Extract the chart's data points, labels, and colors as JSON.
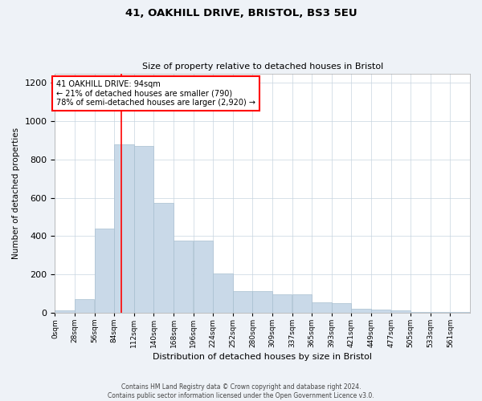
{
  "title1": "41, OAKHILL DRIVE, BRISTOL, BS3 5EU",
  "title2": "Size of property relative to detached houses in Bristol",
  "xlabel": "Distribution of detached houses by size in Bristol",
  "ylabel": "Number of detached properties",
  "bar_labels": [
    "0sqm",
    "28sqm",
    "56sqm",
    "84sqm",
    "112sqm",
    "140sqm",
    "168sqm",
    "196sqm",
    "224sqm",
    "252sqm",
    "280sqm",
    "309sqm",
    "337sqm",
    "365sqm",
    "393sqm",
    "421sqm",
    "449sqm",
    "477sqm",
    "505sqm",
    "533sqm",
    "561sqm"
  ],
  "bar_values": [
    10,
    70,
    440,
    880,
    870,
    575,
    375,
    375,
    205,
    110,
    110,
    95,
    95,
    55,
    50,
    20,
    15,
    10,
    5,
    2,
    2
  ],
  "bar_color": "#c9d9e8",
  "bar_edge_color": "#a8bfd0",
  "vline_color": "red",
  "annotation_text": "41 OAKHILL DRIVE: 94sqm\n← 21% of detached houses are smaller (790)\n78% of semi-detached houses are larger (2,920) →",
  "annotation_box_color": "white",
  "annotation_box_edgecolor": "red",
  "ylim": [
    0,
    1250
  ],
  "yticks": [
    0,
    200,
    400,
    600,
    800,
    1000,
    1200
  ],
  "footer_text": "Contains HM Land Registry data © Crown copyright and database right 2024.\nContains public sector information licensed under the Open Government Licence v3.0.",
  "bg_color": "#eef2f7",
  "plot_bg_color": "white",
  "grid_color": "#c8d4e0"
}
